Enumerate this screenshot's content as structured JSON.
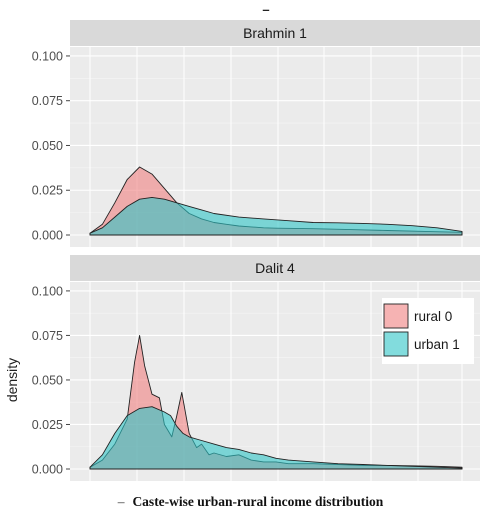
{
  "chart_data": {
    "type": "area",
    "ylabel": "density",
    "ylim": [
      0,
      0.105
    ],
    "yticks": [
      "0.000",
      "0.025",
      "0.050",
      "0.075",
      "0.100"
    ],
    "grid": true,
    "legend": {
      "position": "right-inside",
      "entries": [
        "rural 0",
        "urban 1"
      ]
    },
    "x_range": [
      0,
      30
    ],
    "colors": {
      "rural": "#f08080",
      "urban": "#2ec4c6",
      "strip_bg": "#d9d9d9",
      "panel_bg": "#ebebeb"
    },
    "panels": [
      {
        "strip": "Brahmin 1",
        "series": [
          {
            "name": "rural 0",
            "x": [
              0,
              1,
              2,
              3,
              4,
              5,
              6,
              7,
              8,
              9,
              10,
              11,
              12,
              13,
              14,
              15,
              18,
              21,
              24,
              27,
              30
            ],
            "y": [
              0.001,
              0.006,
              0.018,
              0.031,
              0.038,
              0.034,
              0.026,
              0.018,
              0.012,
              0.009,
              0.007,
              0.006,
              0.005,
              0.0045,
              0.004,
              0.0038,
              0.0035,
              0.003,
              0.0025,
              0.002,
              0.0015
            ]
          },
          {
            "name": "urban 1",
            "x": [
              0,
              1,
              2,
              3,
              4,
              5,
              6,
              7,
              8,
              9,
              10,
              12,
              14,
              16,
              18,
              20,
              22,
              24,
              26,
              28,
              30
            ],
            "y": [
              0.001,
              0.004,
              0.01,
              0.016,
              0.02,
              0.021,
              0.02,
              0.018,
              0.016,
              0.014,
              0.012,
              0.01,
              0.009,
              0.008,
              0.007,
              0.0068,
              0.0065,
              0.006,
              0.0052,
              0.004,
              0.002
            ]
          }
        ]
      },
      {
        "strip": "Dalit 4",
        "series": [
          {
            "name": "rural 0",
            "x": [
              0,
              1,
              2,
              3,
              3.6,
              4,
              4.4,
              5,
              5.6,
              6,
              6.6,
              7,
              7.4,
              8,
              8.6,
              9,
              9.6,
              10,
              11,
              12,
              13,
              14,
              15,
              16,
              18,
              20,
              22,
              24,
              26,
              28,
              30
            ],
            "y": [
              0.001,
              0.005,
              0.014,
              0.028,
              0.06,
              0.075,
              0.058,
              0.042,
              0.04,
              0.025,
              0.018,
              0.03,
              0.043,
              0.02,
              0.012,
              0.014,
              0.008,
              0.009,
              0.007,
              0.008,
              0.005,
              0.004,
              0.004,
              0.003,
              0.003,
              0.0025,
              0.002,
              0.002,
              0.0018,
              0.0015,
              0.001
            ]
          },
          {
            "name": "urban 1",
            "x": [
              0,
              1,
              2,
              3,
              4,
              5,
              6,
              6.5,
              7,
              7.5,
              8,
              9,
              10,
              11,
              12,
              13,
              14,
              15,
              16,
              18,
              20,
              22,
              24,
              26,
              28,
              30
            ],
            "y": [
              0.001,
              0.008,
              0.02,
              0.03,
              0.034,
              0.035,
              0.032,
              0.03,
              0.024,
              0.02,
              0.018,
              0.016,
              0.014,
              0.012,
              0.011,
              0.009,
              0.008,
              0.006,
              0.005,
              0.004,
              0.003,
              0.0025,
              0.002,
              0.0015,
              0.001,
              0.0005
            ]
          }
        ]
      }
    ]
  },
  "caption": {
    "dash": "–",
    "text": "Caste-wise urban-rural income distribution"
  }
}
